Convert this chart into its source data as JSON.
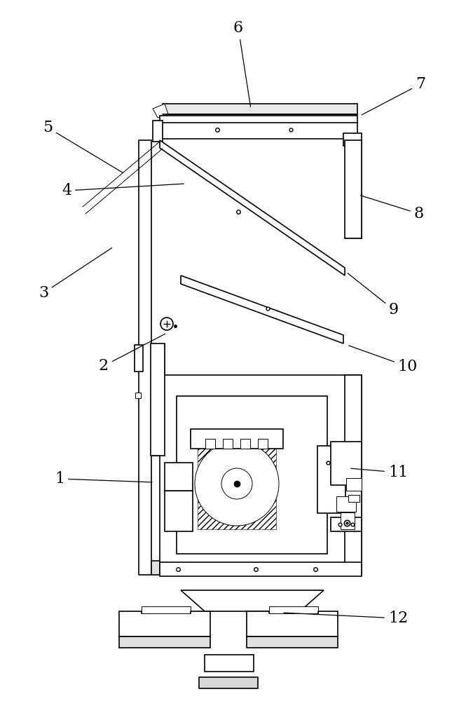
{
  "bg_color": "#ffffff",
  "line_color": "#000000",
  "label_fontsize": 16,
  "labels": [
    "1",
    "2",
    "3",
    "4",
    "5",
    "6",
    "7",
    "8",
    "9",
    "10",
    "11",
    "12"
  ]
}
